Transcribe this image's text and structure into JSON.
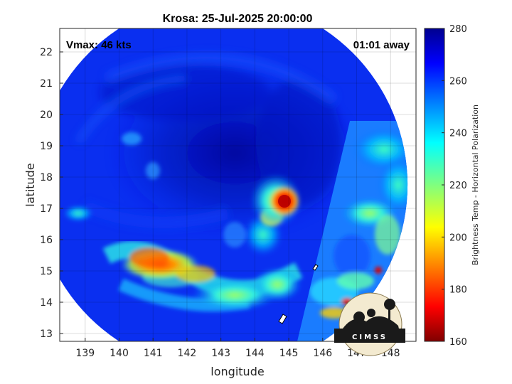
{
  "chart_data": {
    "type": "heatmap",
    "title": "Krosa: 25-Jul-2025 20:00:00",
    "annotations": {
      "vmax": "Vmax: 46 kts",
      "time_away": "01:01 away"
    },
    "xlabel": "longitude",
    "ylabel": "latitude",
    "xlim": [
      138.25,
      148.75
    ],
    "ylim": [
      12.75,
      22.75
    ],
    "xticks": [
      139,
      140,
      141,
      142,
      143,
      144,
      145,
      146,
      147,
      148
    ],
    "yticks": [
      13,
      14,
      15,
      16,
      17,
      18,
      19,
      20,
      21,
      22
    ],
    "grid": true,
    "colorbar": {
      "label": "Brightness Temp - Horizontal Polarization",
      "range": [
        160,
        280
      ],
      "ticks": [
        160,
        180,
        200,
        220,
        240,
        260,
        280
      ],
      "colormap": "jet",
      "colormap_stops": [
        "#00008f",
        "#0000ff",
        "#00ffff",
        "#ffff00",
        "#ff0000",
        "#800000"
      ]
    },
    "field": {
      "background_value": 262,
      "swath_center": [
        143.0,
        17.75
      ],
      "swath_radius_deg": 5.5,
      "features": [
        {
          "name": "eye-core",
          "lon": 144.8,
          "lat": 17.15,
          "value": 172
        },
        {
          "name": "inner-core-ring",
          "lon": 144.6,
          "lat": 16.9,
          "value": 212
        },
        {
          "name": "central-dense-overcast",
          "lon": 143.5,
          "lat": 17.8,
          "value": 270
        },
        {
          "name": "southwest-rainband",
          "lon": 141.0,
          "lat": 15.25,
          "value": 195
        },
        {
          "name": "southern-rainband",
          "lon": 143.5,
          "lat": 14.5,
          "value": 225
        },
        {
          "name": "eastern-rainband",
          "lon": 147.5,
          "lat": 16.5,
          "value": 228
        },
        {
          "name": "southeast-convection",
          "lon": 146.7,
          "lat": 13.9,
          "value": 180
        }
      ]
    },
    "logo": "CIMSS"
  }
}
